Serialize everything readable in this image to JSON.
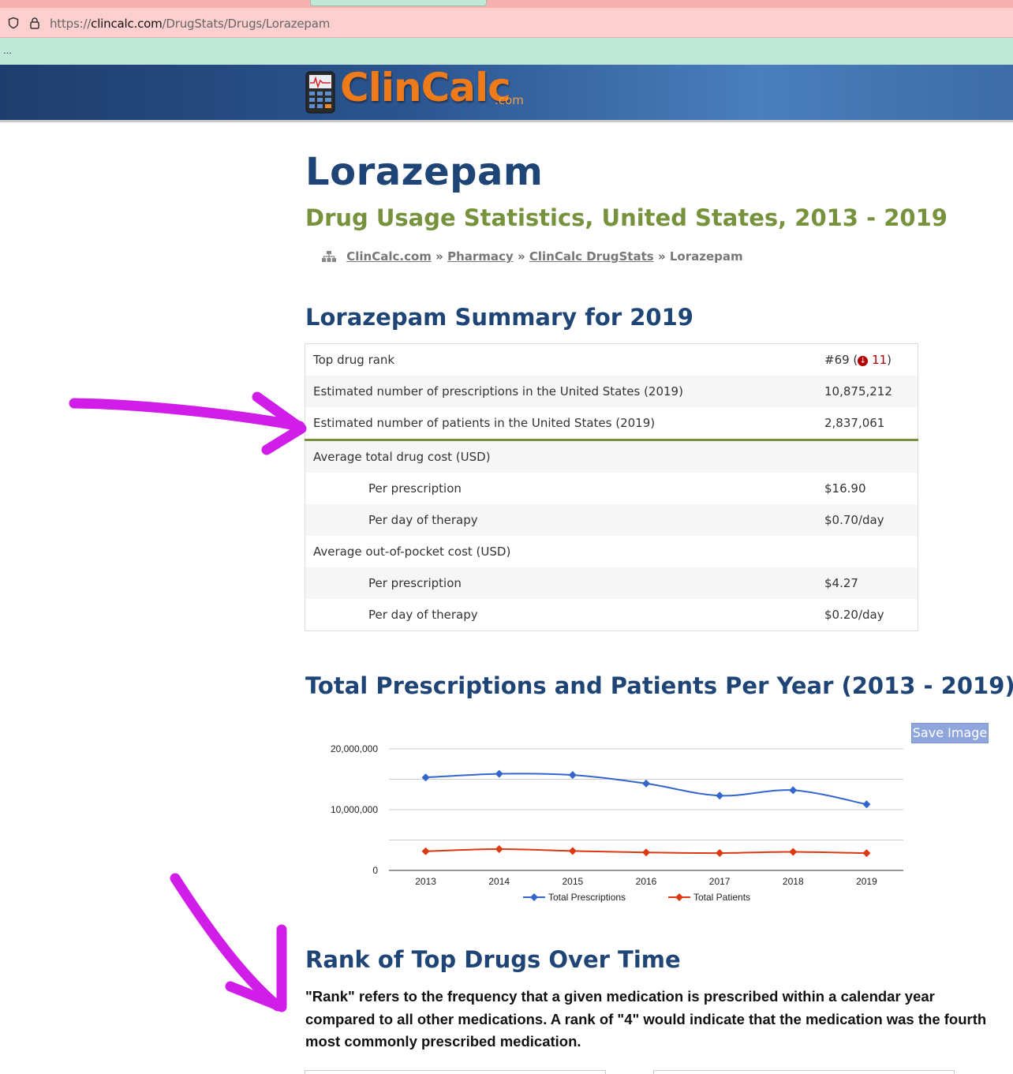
{
  "browser": {
    "url_prefix": "https://",
    "url_host": "clincalc.com",
    "url_path": "/DrugStats/Drugs/Lorazepam",
    "bookmarks_overflow": "..."
  },
  "site": {
    "logo_text": "ClinCalc",
    "logo_suffix": ".com"
  },
  "page": {
    "title": "Lorazepam",
    "subtitle": "Drug Usage Statistics, United States, 2013 - 2019",
    "breadcrumb": {
      "items": [
        "ClinCalc.com",
        "Pharmacy",
        "ClinCalc DrugStats"
      ],
      "separator": "»",
      "current": "Lorazepam"
    }
  },
  "summary": {
    "heading": "Lorazepam Summary for 2019",
    "rows": [
      {
        "label": "Top drug rank",
        "value": "#69",
        "change": "11"
      },
      {
        "label": "Estimated number of prescriptions in the United States (2019)",
        "value": "10,875,212"
      },
      {
        "label": "Estimated number of patients in the United States (2019)",
        "value": "2,837,061"
      },
      {
        "label": "Average total drug cost (USD)",
        "value": ""
      },
      {
        "label": "Per prescription",
        "value": "$16.90"
      },
      {
        "label": "Per day of therapy",
        "value": "$0.70/day"
      },
      {
        "label": "Average out-of-pocket cost (USD)",
        "value": ""
      },
      {
        "label": "Per prescription",
        "value": "$4.27"
      },
      {
        "label": "Per day of therapy",
        "value": "$0.20/day"
      }
    ]
  },
  "trend": {
    "heading": "Total Prescriptions and Patients Per Year (2013 - 2019)",
    "save_button": "Save Image"
  },
  "chart_data": {
    "type": "line",
    "x": [
      "2013",
      "2014",
      "2015",
      "2016",
      "2017",
      "2018",
      "2019"
    ],
    "ylim": [
      0,
      20000000
    ],
    "yticks": [
      "0",
      "10,000,000",
      "20,000,000"
    ],
    "grid": true,
    "legend_position": "bottom",
    "series": [
      {
        "name": "Total Prescriptions",
        "color": "#3366cc",
        "values": [
          15300000,
          15900000,
          15700000,
          14300000,
          12300000,
          13200000,
          10875212
        ]
      },
      {
        "name": "Total Patients",
        "color": "#dc3912",
        "values": [
          3150000,
          3500000,
          3200000,
          2950000,
          2850000,
          3050000,
          2837061
        ]
      }
    ]
  },
  "rank": {
    "heading": "Rank of Top Drugs Over Time",
    "description": "\"Rank\" refers to the frequency that a given medication is prescribed within a calendar year compared to all other medications. A rank of \"4\" would indicate that the medication was the fourth most commonly prescribed medication."
  },
  "annotations": {
    "color": "#d01ee8"
  }
}
